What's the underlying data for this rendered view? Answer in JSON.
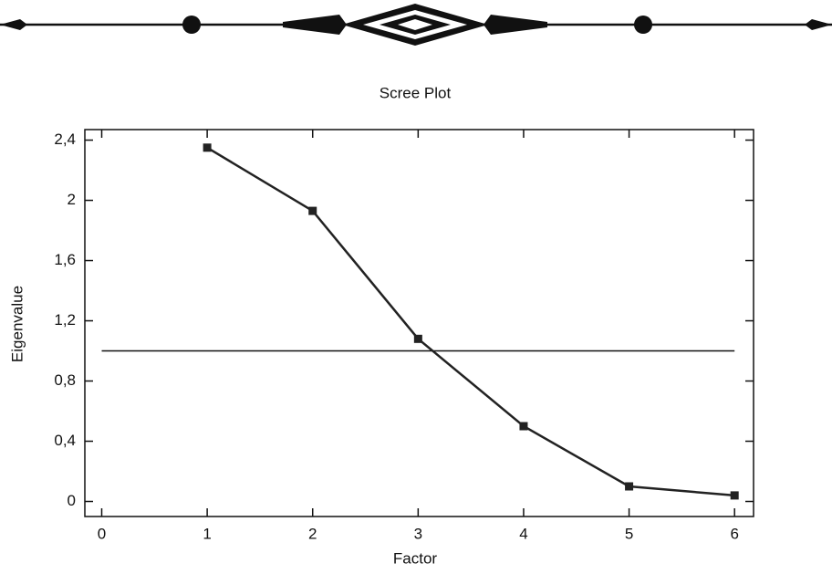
{
  "chart_data": {
    "type": "line",
    "title": "Scree Plot",
    "x_label": "Factor",
    "y_label": "Eigenvalue",
    "x": [
      1,
      2,
      3,
      4,
      5,
      6
    ],
    "values": [
      2.35,
      1.93,
      1.08,
      0.5,
      0.1,
      0.04
    ],
    "color": "#222222",
    "reference_line": 1,
    "xlim": [
      -0.16,
      6.18
    ],
    "ylim": [
      -0.1,
      2.47
    ],
    "xticks": [
      0,
      1,
      2,
      3,
      4,
      5,
      6
    ],
    "yticks": [
      0,
      {
        "value": 0.4,
        "label": "0,4"
      },
      {
        "value": 0.8,
        "label": "0,8"
      },
      {
        "value": 1.2,
        "label": "1,2"
      },
      {
        "value": 1.6,
        "label": "1,6"
      },
      2,
      {
        "value": 2.4,
        "label": "2,4"
      }
    ]
  }
}
